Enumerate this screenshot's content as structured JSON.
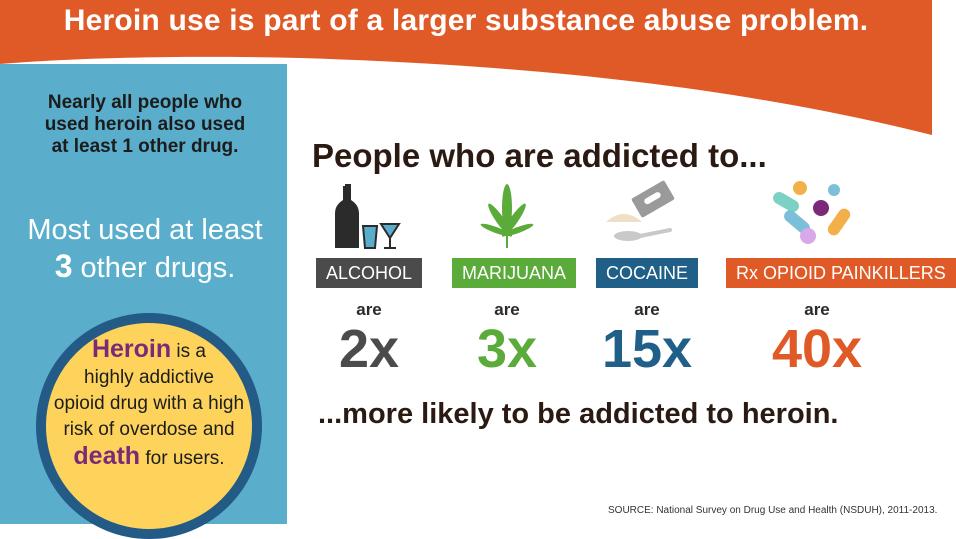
{
  "header": {
    "title": "Heroin use is part of a larger substance abuse problem."
  },
  "sidebar": {
    "intro_lines": [
      "Nearly all people who",
      "used heroin also used",
      "at least 1 other drug."
    ],
    "most_used": {
      "line1": "Most used at least",
      "number": "3",
      "rest": " other drugs."
    },
    "callout": {
      "word_heroin": "Heroin",
      "after_heroin": " is a",
      "line2": "highly addictive",
      "line3": "opioid drug with a high",
      "line4": "risk of overdose and",
      "word_death": "death",
      "after_death": " for users."
    }
  },
  "main": {
    "subtitle": "People who are addicted to...",
    "drugs": [
      {
        "label": "ALCOHOL",
        "are": "are",
        "multiplier": "2x",
        "label_bg": "#4b4b4b",
        "text_color": "#4b4b4b",
        "icon": "alcohol-bottle-glasses-icon"
      },
      {
        "label": "MARIJUANA",
        "are": "are",
        "multiplier": "3x",
        "label_bg": "#5bab3a",
        "text_color": "#5bab3a",
        "icon": "cannabis-leaf-icon"
      },
      {
        "label": "COCAINE",
        "are": "are",
        "multiplier": "15x",
        "label_bg": "#1f5f88",
        "text_color": "#1f5f88",
        "icon": "razor-spoon-powder-icon"
      },
      {
        "label": "Rx OPIOID PAINKILLERS",
        "are": "are",
        "multiplier": "40x",
        "label_bg": "#e05a27",
        "text_color": "#e05a27",
        "icon": "pills-icon"
      }
    ],
    "conclusion": "...more likely to be addicted to heroin."
  },
  "source": "SOURCE: National Survey on Drug Use and Health (NSDUH), 2011-2013.",
  "colors": {
    "header_orange": "#e05a27",
    "sidebar_blue": "#5aaecb",
    "circle_yellow": "#fdd35c",
    "circle_border": "#235a86",
    "emphasis_purple": "#7a2a78"
  }
}
